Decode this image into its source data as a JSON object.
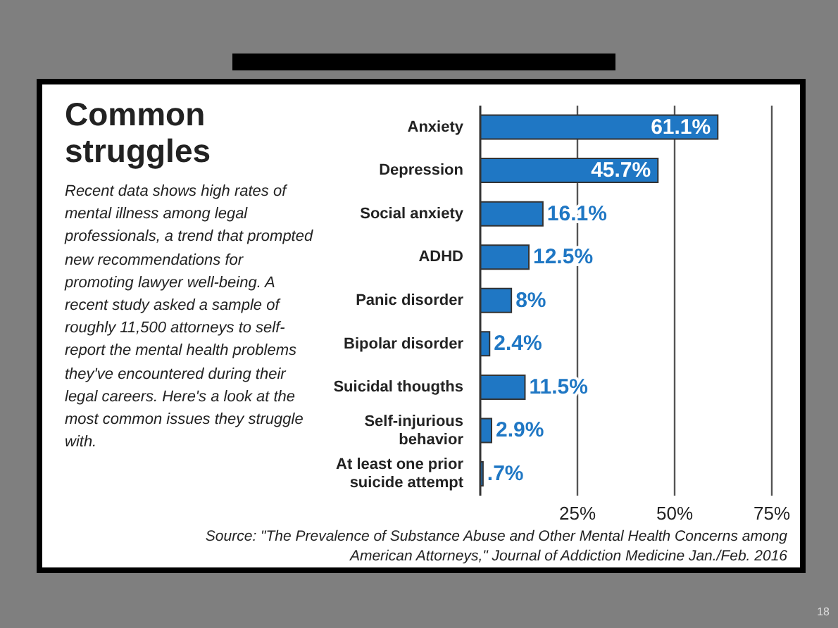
{
  "chart_data": {
    "type": "bar",
    "orientation": "horizontal",
    "title": "Common struggles",
    "subtitle": "Recent data shows high rates of mental illness among legal professionals, a trend that prompted new recommendations for promoting lawyer well-being. A recent study asked a sample of roughly 11,500 attorneys to self-report the mental health problems they've encountered during their legal careers. Here's a look at the most common issues they struggle with.",
    "categories": [
      "Anxiety",
      "Depression",
      "Social anxiety",
      "ADHD",
      "Panic disorder",
      "Bipolar disorder",
      "Suicidal thougths",
      "Self-injurious behavior",
      "At least one prior suicide attempt"
    ],
    "values": [
      61.1,
      45.7,
      16.1,
      12.5,
      8,
      2.4,
      11.5,
      2.9,
      0.7
    ],
    "value_labels": [
      "61.1%",
      "45.7%",
      "16.1%",
      "12.5%",
      "8%",
      "2.4%",
      "11.5%",
      "2.9%",
      ".7%"
    ],
    "color": "#1f77c4",
    "xlim": [
      0,
      75
    ],
    "xticks": [
      {
        "value": 25,
        "label": "25%"
      },
      {
        "value": 50,
        "label": "50%"
      },
      {
        "value": 75,
        "label": "75%"
      }
    ],
    "grid": "x",
    "annotations": [
      "Source: \"The Prevalence of Substance Abuse and Other Mental Health Concerns among American Attorneys,\" Journal of Addiction Medicine Jan./Feb. 2016",
      "18"
    ]
  }
}
